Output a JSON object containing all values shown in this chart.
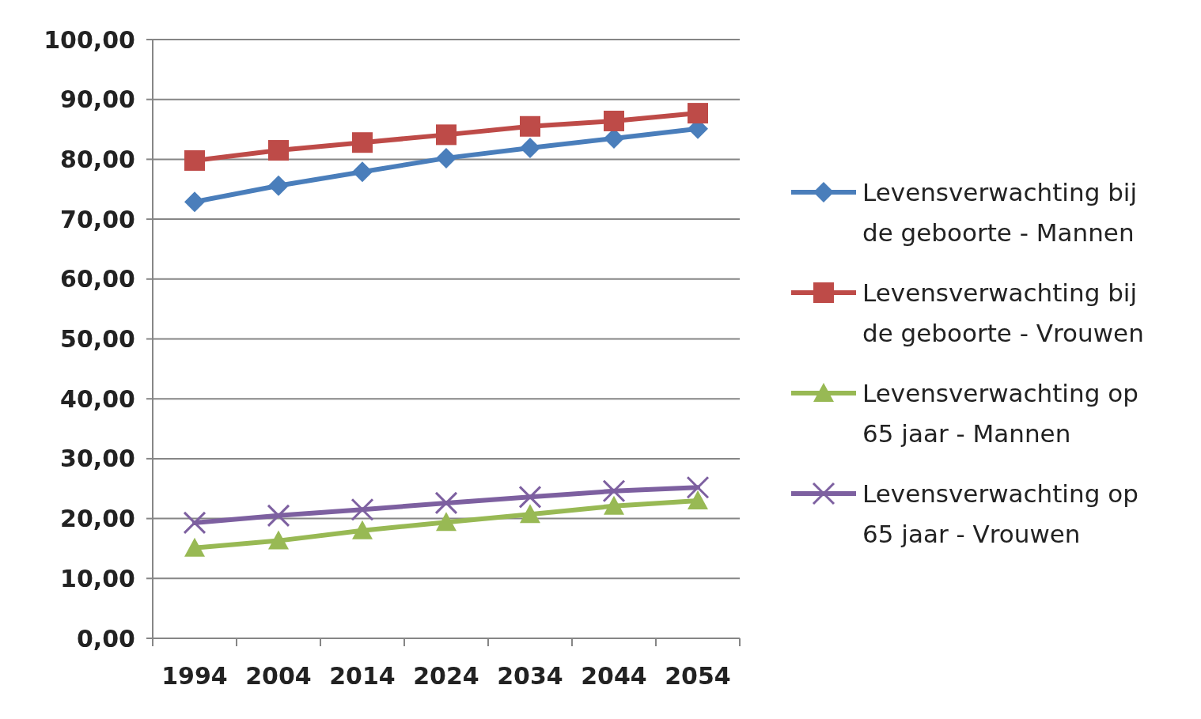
{
  "chart_data": {
    "type": "line",
    "categories": [
      "1994",
      "2004",
      "2014",
      "2024",
      "2034",
      "2044",
      "2054"
    ],
    "ylim": [
      0,
      100
    ],
    "yticks": [
      {
        "value": 0,
        "label": "0,00"
      },
      {
        "value": 10,
        "label": "10,00"
      },
      {
        "value": 20,
        "label": "20,00"
      },
      {
        "value": 30,
        "label": "30,00"
      },
      {
        "value": 40,
        "label": "40,00"
      },
      {
        "value": 50,
        "label": "50,00"
      },
      {
        "value": 60,
        "label": "60,00"
      },
      {
        "value": 70,
        "label": "70,00"
      },
      {
        "value": 80,
        "label": "80,00"
      },
      {
        "value": 90,
        "label": "90,00"
      },
      {
        "value": 100,
        "label": "100,00"
      }
    ],
    "grid": "y",
    "legend": "right",
    "series": [
      {
        "name": "Levensverwachting bij de geboorte - Mannen",
        "color": "#4a7ebb",
        "marker": "diamond",
        "values": [
          72.9,
          75.6,
          77.9,
          80.2,
          81.9,
          83.5,
          85.1
        ]
      },
      {
        "name": "Levensverwachting bij de geboorte - Vrouwen",
        "color": "#be4b48",
        "marker": "square",
        "values": [
          79.8,
          81.5,
          82.8,
          84.1,
          85.5,
          86.4,
          87.7
        ]
      },
      {
        "name": "Levensverwachting op 65 jaar - Mannen",
        "color": "#98b954",
        "marker": "triangle",
        "values": [
          15.1,
          16.3,
          18,
          19.4,
          20.7,
          22.1,
          23
        ]
      },
      {
        "name": "Levensverwachting op 65 jaar - Vrouwen",
        "color": "#7d60a0",
        "marker": "cross",
        "values": [
          19.3,
          20.5,
          21.5,
          22.6,
          23.6,
          24.6,
          25.2
        ]
      }
    ]
  }
}
